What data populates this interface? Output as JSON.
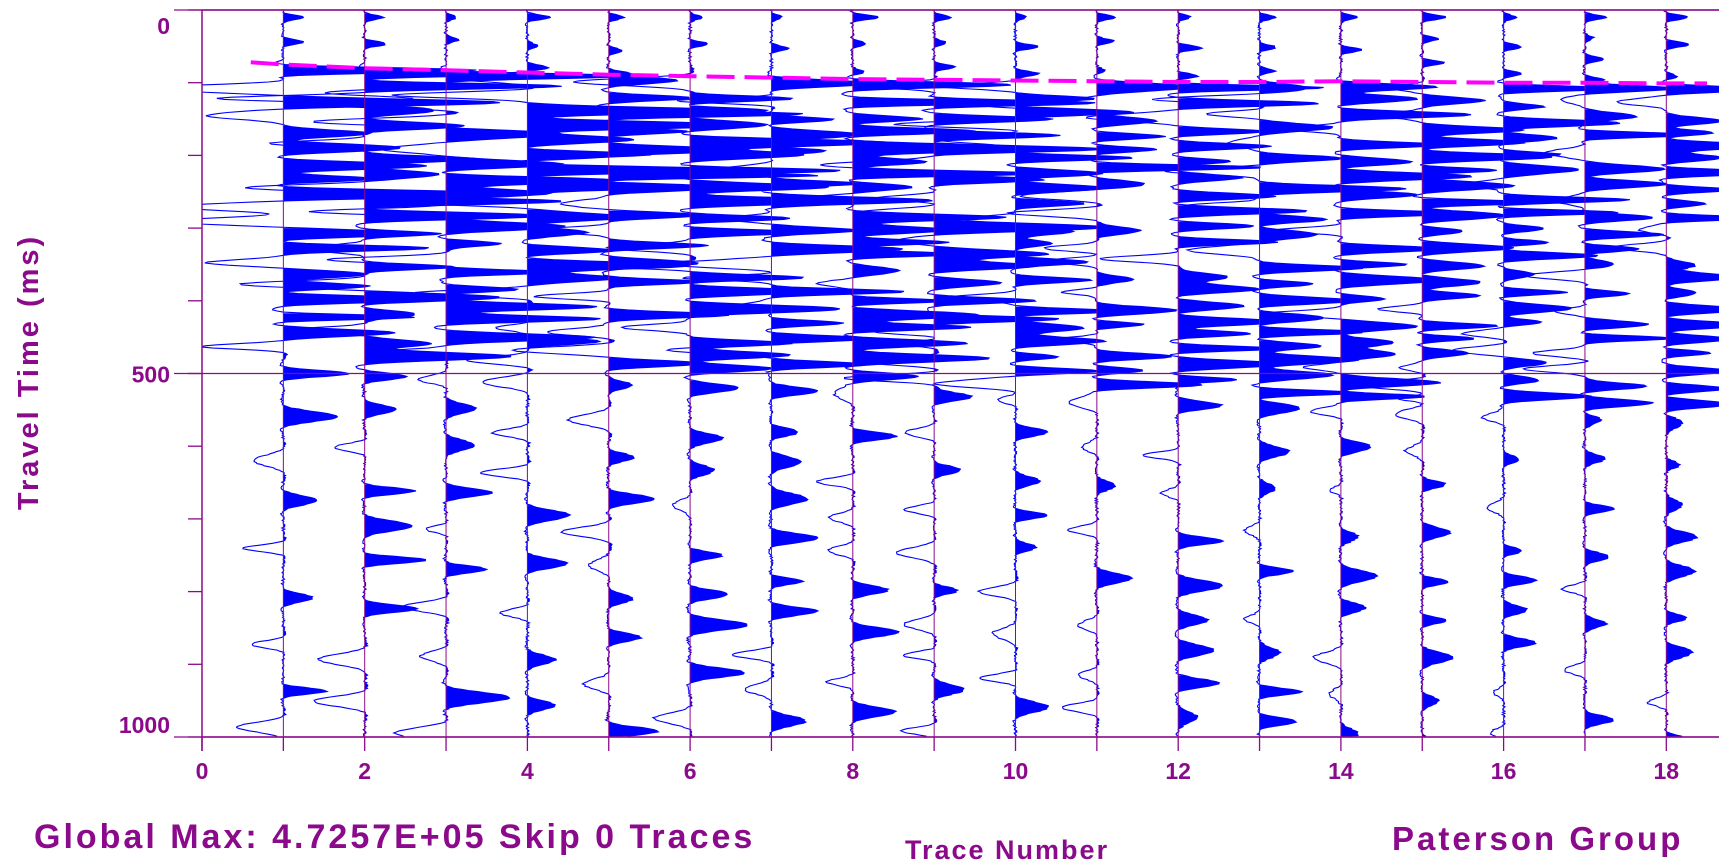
{
  "chart_data": {
    "type": "seismic-wiggle",
    "xlabel": "Trace Number",
    "ylabel": "Travel Time (ms)",
    "x_ticks": [
      0,
      2,
      4,
      6,
      8,
      10,
      12,
      14,
      16,
      18
    ],
    "y_ticks": [
      0,
      500,
      1000
    ],
    "xlim": [
      0,
      18.5
    ],
    "ylim": [
      0,
      1000
    ],
    "y_inverted": true,
    "trace_positions": [
      1,
      2,
      3,
      4,
      5,
      6,
      7,
      8,
      9,
      10,
      11,
      12,
      13,
      14,
      15,
      16,
      17,
      18
    ],
    "first_break_pick_ms": [
      75,
      80,
      83,
      86,
      89,
      91,
      93,
      95,
      96,
      97,
      98,
      99,
      99,
      98,
      99,
      100,
      100,
      101
    ],
    "wiggle_fill_color": "#0000ff",
    "pick_line_color": "#ff00ff",
    "axis_color": "#8B0A8B",
    "grid_horizontal_ms": [
      0,
      500,
      1000
    ],
    "grid_vertical": true
  },
  "footer": {
    "global_max": "Global Max: 4.7257E+05 Skip 0 Traces",
    "x_axis_title": "Trace Number",
    "group": "Paterson Group"
  }
}
